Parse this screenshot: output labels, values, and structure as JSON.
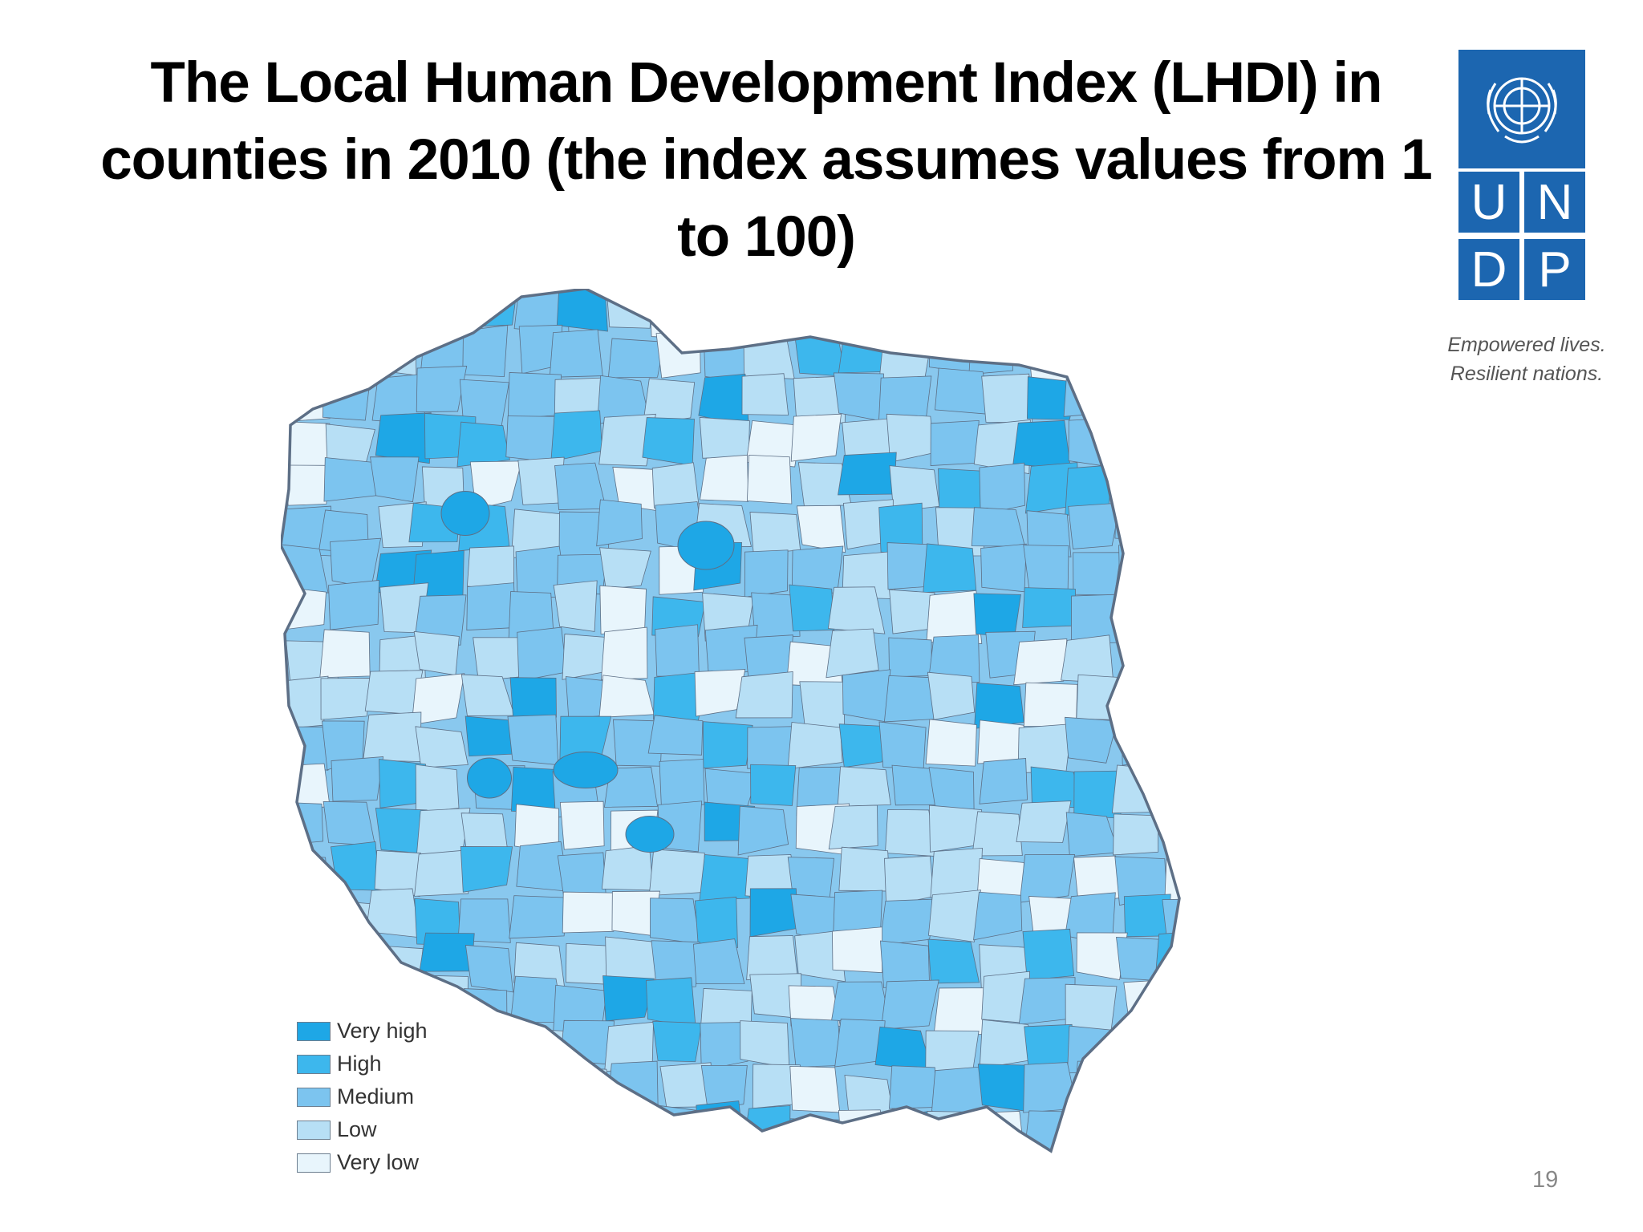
{
  "slide": {
    "title": "The Local Human Development Index (LHDI) in counties in 2010 (the index assumes values from 1 to 100)",
    "page_number": "19"
  },
  "logo": {
    "letters": [
      "U",
      "N",
      "D",
      "P"
    ],
    "tagline_line1": "Empowered lives.",
    "tagline_line2": "Resilient nations.",
    "brand_color": "#1c66b0"
  },
  "map": {
    "region_fill_default": "#89c8ee",
    "border_color": "#5d6f86"
  },
  "legend": {
    "items": [
      {
        "label": "Very high",
        "color": "#1ea7e6"
      },
      {
        "label": "High",
        "color": "#3db7ed"
      },
      {
        "label": "Medium",
        "color": "#7cc4ef"
      },
      {
        "label": "Low",
        "color": "#b7dff5"
      },
      {
        "label": "Very low",
        "color": "#e8f5fc"
      }
    ]
  }
}
